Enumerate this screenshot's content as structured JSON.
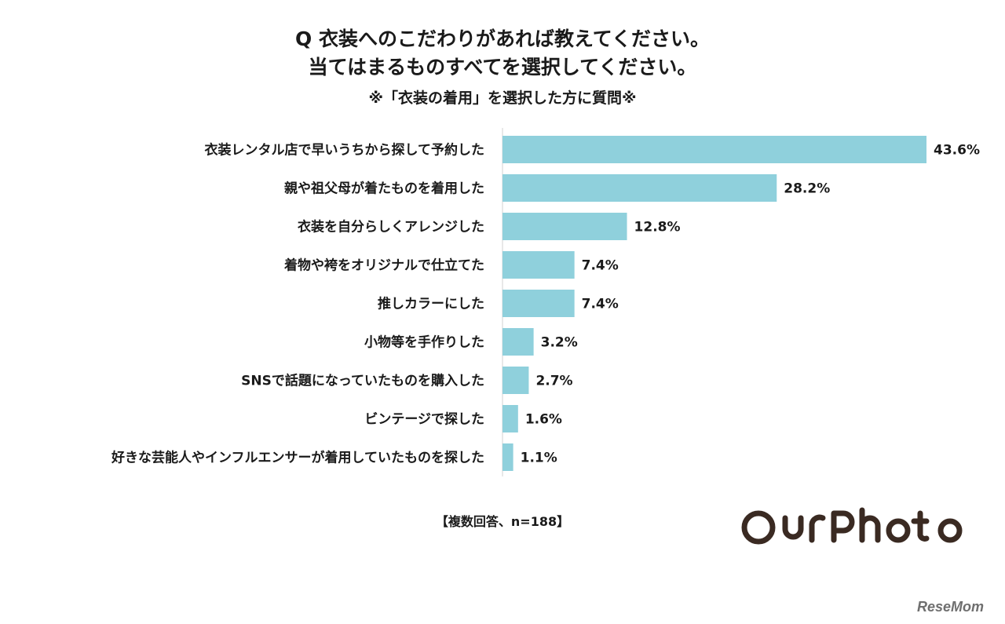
{
  "header": {
    "line1": "Q 衣装へのこだわりがあれば教えてください。",
    "line2": "当てはまるものすべてを選択してください。",
    "line3": "※「衣装の着用」を選択した方に質問※"
  },
  "chart_data": {
    "type": "bar",
    "orientation": "horizontal",
    "categories": [
      "衣装レンタル店で早いうちから探して予約した",
      "親や祖父母が着たものを着用した",
      "衣装を自分らしくアレンジした",
      "着物や袴をオリジナルで仕立てた",
      "推しカラーにした",
      "小物等を手作りした",
      "SNSで話題になっていたものを購入した",
      "ビンテージで探した",
      "好きな芸能人やインフルエンサーが着用していたものを探した"
    ],
    "values": [
      43.6,
      28.2,
      12.8,
      7.4,
      7.4,
      3.2,
      2.7,
      1.6,
      1.1
    ],
    "value_labels": [
      "43.6%",
      "28.2%",
      "12.8%",
      "7.4%",
      "7.4%",
      "3.2%",
      "2.7%",
      "1.6%",
      "1.1%"
    ],
    "bar_color": "#8fd0dc",
    "xlim": [
      0,
      43.6
    ],
    "grid": false
  },
  "footer": {
    "note": "【複数回答、n=188】",
    "logo": "OurPhoto",
    "source_logo": "ReseMom"
  }
}
